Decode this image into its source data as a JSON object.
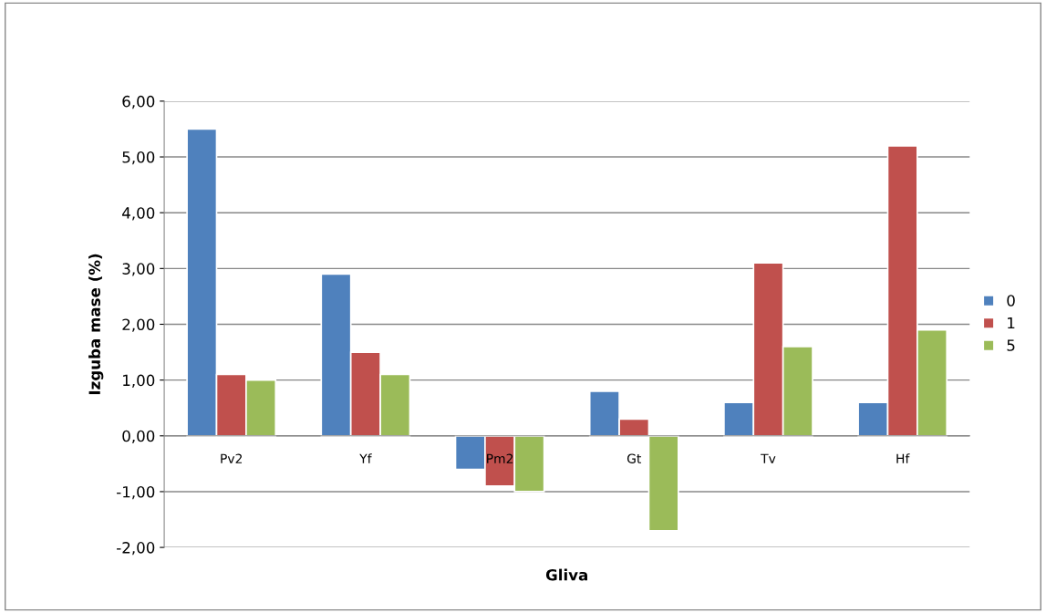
{
  "chart_data": {
    "type": "bar",
    "xlabel": "Gliva",
    "ylabel": "Izguba mase (%)",
    "categories": [
      "Pv2",
      "Yf",
      "Pm2",
      "Gt",
      "Tv",
      "Hf"
    ],
    "series": [
      {
        "name": "0",
        "color": "#4f81bd",
        "values": [
          5.5,
          2.9,
          -0.6,
          0.8,
          0.6,
          0.6
        ]
      },
      {
        "name": "1",
        "color": "#c0504d",
        "values": [
          1.1,
          1.5,
          -0.9,
          0.3,
          3.1,
          5.2
        ]
      },
      {
        "name": "5",
        "color": "#9bbb59",
        "values": [
          1.0,
          1.1,
          -1.0,
          -1.7,
          1.6,
          1.9
        ]
      }
    ],
    "ylim": [
      -2,
      6
    ],
    "yticks": [
      {
        "value": -2,
        "label": "-2,00"
      },
      {
        "value": -1,
        "label": "-1,00"
      },
      {
        "value": 0,
        "label": "0,00"
      },
      {
        "value": 1,
        "label": "1,00"
      },
      {
        "value": 2,
        "label": "2,00"
      },
      {
        "value": 3,
        "label": "3,00"
      },
      {
        "value": 4,
        "label": "4,00"
      },
      {
        "value": 5,
        "label": "5,00"
      },
      {
        "value": 6,
        "label": "6,00"
      }
    ],
    "grid": "y",
    "legend": "right"
  }
}
